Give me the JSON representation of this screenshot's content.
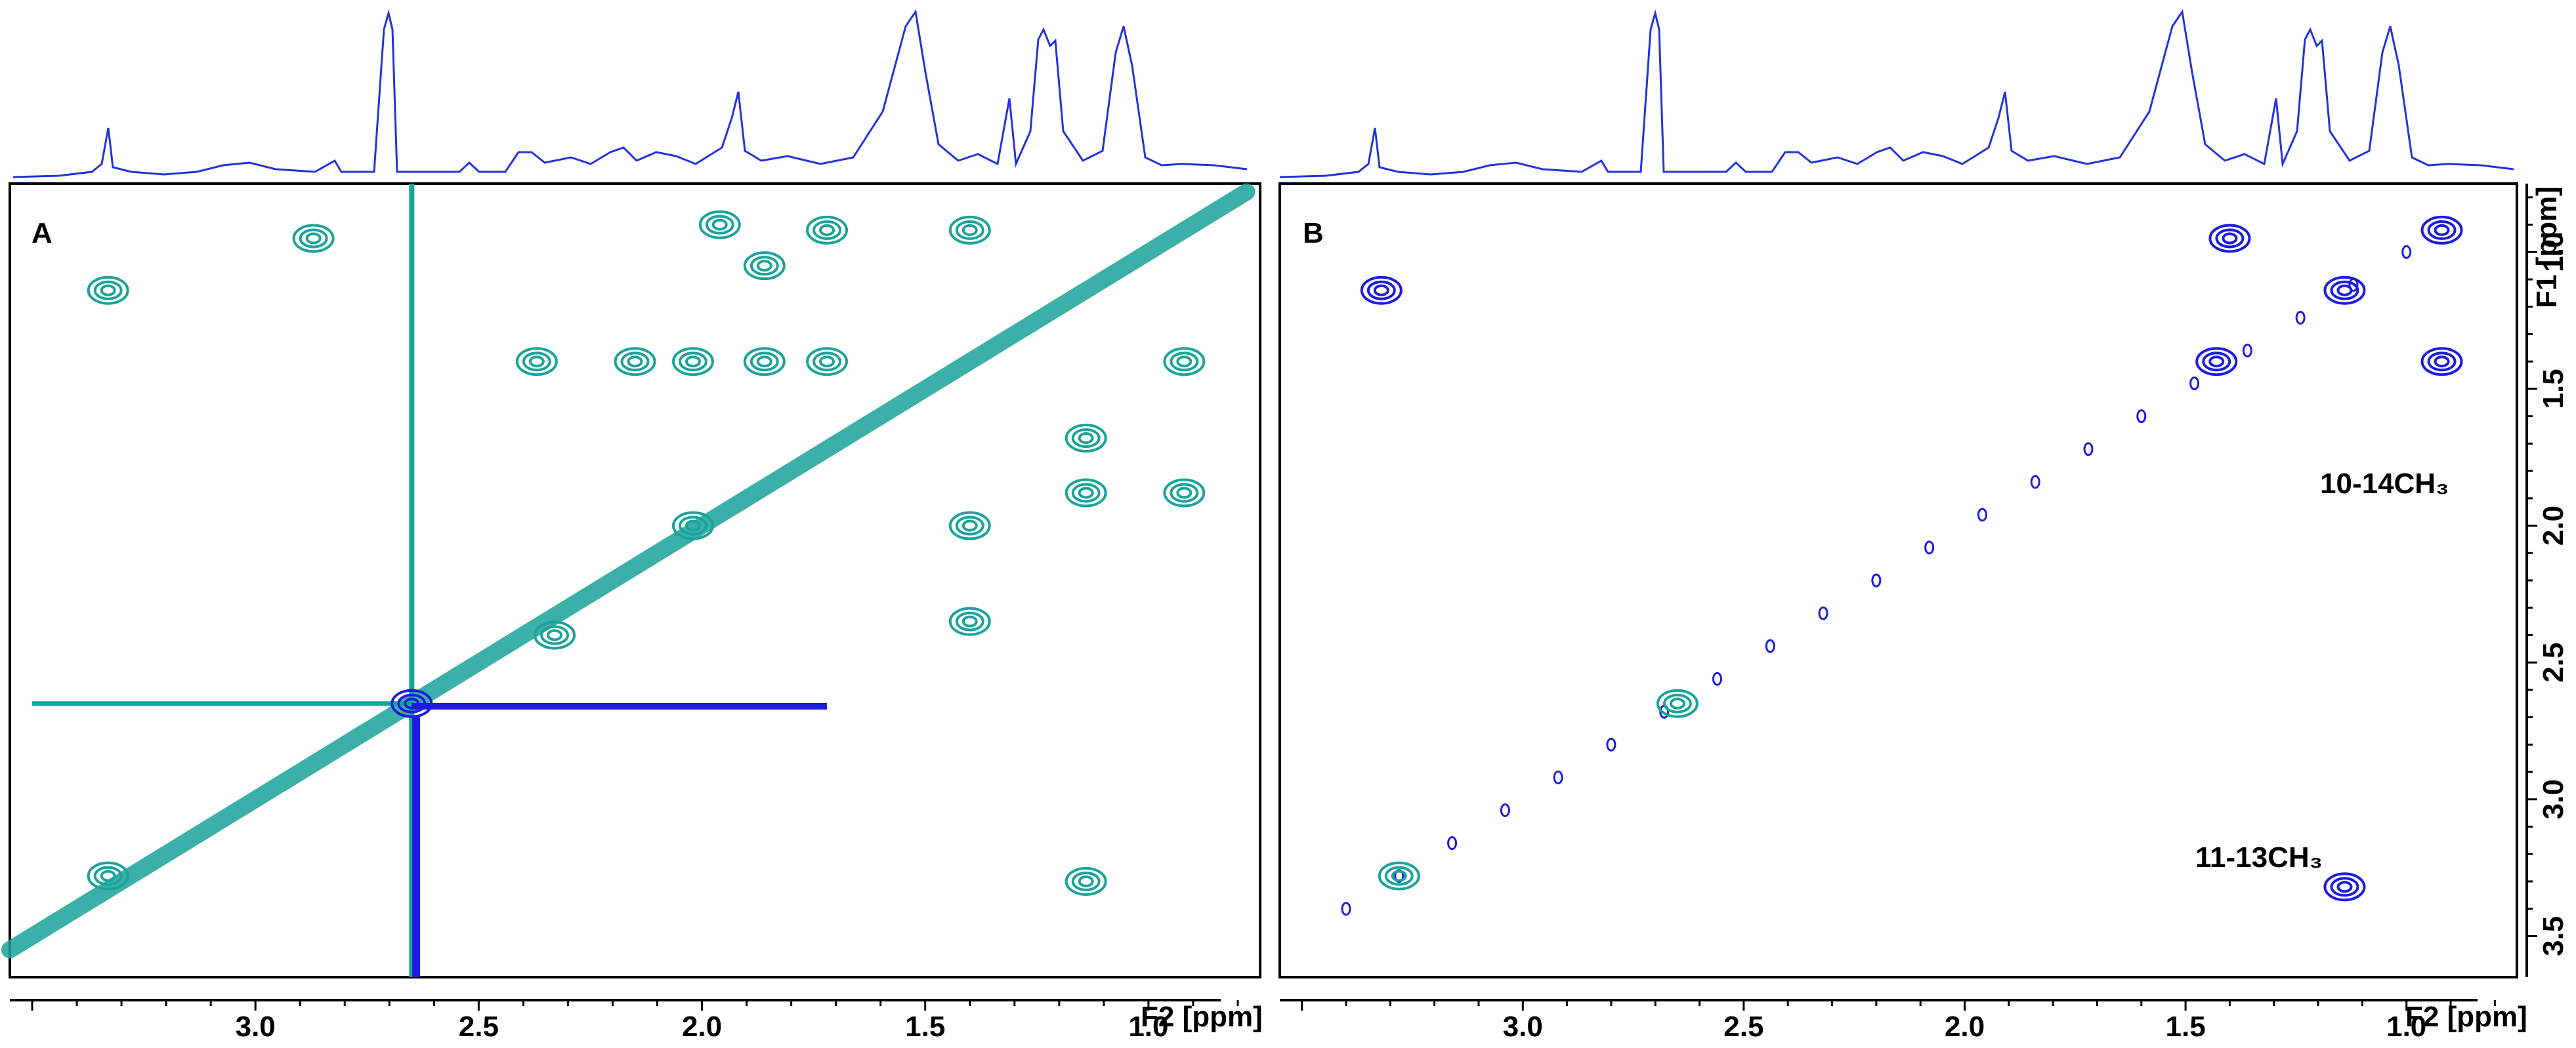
{
  "chart_data": [
    {
      "type": "heatmap",
      "panel": "A",
      "title": "",
      "xlabel": "F2 [ppm]",
      "ylabel": "",
      "xlim": [
        3.55,
        0.75
      ],
      "ylim": [
        0.75,
        3.65
      ],
      "x_ticks": [
        {
          "value": 3.0,
          "label": "3.0"
        },
        {
          "value": 2.5,
          "label": "2.5"
        },
        {
          "value": 2.0,
          "label": "2.0"
        },
        {
          "value": 1.5,
          "label": "1.5"
        },
        {
          "value": 1.0,
          "label": "1.0"
        }
      ],
      "y_ticks": [],
      "diagonal": {
        "from": [
          3.55,
          3.55
        ],
        "to": [
          0.78,
          0.78
        ],
        "color": "#1aa39a"
      },
      "cross_peaks": [
        {
          "f2": 3.33,
          "f1": 1.14,
          "series": "teal"
        },
        {
          "f2": 3.33,
          "f1": 3.28,
          "series": "teal"
        },
        {
          "f2": 2.87,
          "f1": 0.95,
          "series": "teal"
        },
        {
          "f2": 2.65,
          "f1": 2.65,
          "series": "blue"
        },
        {
          "f2": 2.37,
          "f1": 1.4,
          "series": "teal"
        },
        {
          "f2": 2.33,
          "f1": 2.4,
          "series": "teal"
        },
        {
          "f2": 2.15,
          "f1": 1.4,
          "series": "teal"
        },
        {
          "f2": 2.02,
          "f1": 1.4,
          "series": "teal"
        },
        {
          "f2": 2.02,
          "f1": 2.0,
          "series": "teal"
        },
        {
          "f2": 1.96,
          "f1": 0.9,
          "series": "teal"
        },
        {
          "f2": 1.86,
          "f1": 1.05,
          "series": "teal"
        },
        {
          "f2": 1.86,
          "f1": 1.4,
          "series": "teal"
        },
        {
          "f2": 1.72,
          "f1": 0.92,
          "series": "teal"
        },
        {
          "f2": 1.72,
          "f1": 1.4,
          "series": "teal"
        },
        {
          "f2": 1.4,
          "f1": 0.92,
          "series": "teal"
        },
        {
          "f2": 1.4,
          "f1": 2.0,
          "series": "teal"
        },
        {
          "f2": 1.4,
          "f1": 2.35,
          "series": "teal"
        },
        {
          "f2": 1.14,
          "f1": 1.68,
          "series": "teal"
        },
        {
          "f2": 1.14,
          "f1": 1.88,
          "series": "teal"
        },
        {
          "f2": 1.14,
          "f1": 3.3,
          "series": "teal"
        },
        {
          "f2": 0.92,
          "f1": 1.4,
          "series": "teal"
        },
        {
          "f2": 0.92,
          "f1": 1.88,
          "series": "teal"
        }
      ]
    },
    {
      "type": "heatmap",
      "panel": "B",
      "title": "",
      "xlabel": "F2 [ppm]",
      "ylabel": "F1 [ppm]",
      "xlim": [
        3.55,
        0.75
      ],
      "ylim": [
        0.75,
        3.65
      ],
      "x_ticks": [
        {
          "value": 3.0,
          "label": "3.0"
        },
        {
          "value": 2.5,
          "label": "2.5"
        },
        {
          "value": 2.0,
          "label": "2.0"
        },
        {
          "value": 1.5,
          "label": "1.5"
        },
        {
          "value": 1.0,
          "label": "1.0"
        }
      ],
      "y_ticks": [
        {
          "value": 1.0,
          "label": "1.0"
        },
        {
          "value": 1.5,
          "label": "1.5"
        },
        {
          "value": 2.0,
          "label": "2.0"
        },
        {
          "value": 2.5,
          "label": "2.5"
        },
        {
          "value": 3.0,
          "label": "3.0"
        },
        {
          "value": 3.5,
          "label": "3.5"
        }
      ],
      "annotations": [
        {
          "text": "10-14CH₃",
          "f2": 1.02,
          "f1": 1.55
        },
        {
          "text": "11-13CH₃",
          "f2": 1.14,
          "f1": 3.1
        }
      ],
      "cross_peaks": [
        {
          "f2": 3.32,
          "f1": 1.14,
          "series": "blue"
        },
        {
          "f2": 3.28,
          "f1": 3.28,
          "series": "teal"
        },
        {
          "f2": 2.65,
          "f1": 2.65,
          "series": "teal"
        },
        {
          "f2": 1.43,
          "f1": 1.4,
          "series": "blue"
        },
        {
          "f2": 1.4,
          "f1": 0.95,
          "series": "blue"
        },
        {
          "f2": 1.14,
          "f1": 1.14,
          "series": "blue"
        },
        {
          "f2": 0.92,
          "f1": 0.92,
          "series": "blue"
        },
        {
          "f2": 0.92,
          "f1": 1.4,
          "series": "blue"
        },
        {
          "f2": 1.14,
          "f1": 3.32,
          "series": "blue"
        }
      ]
    }
  ],
  "colors": {
    "teal": "#1aa39a",
    "blue": "#1c1ce0",
    "spectrum": "#2233dd"
  }
}
